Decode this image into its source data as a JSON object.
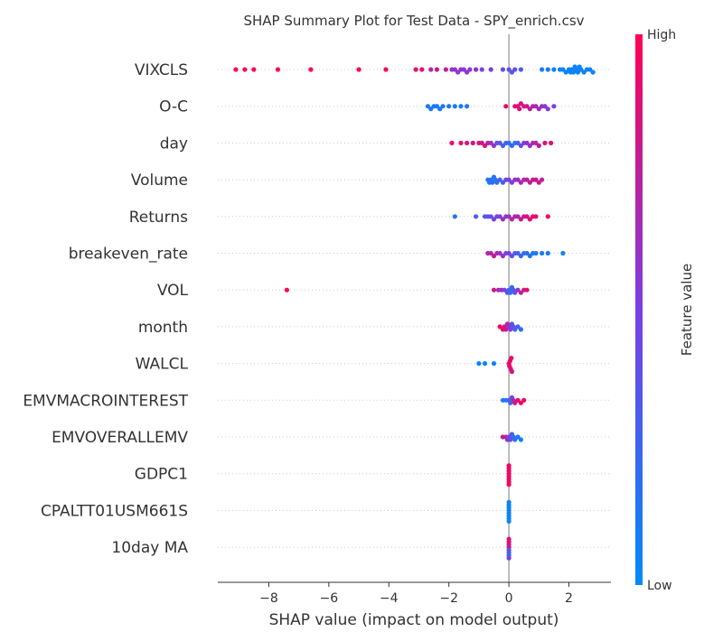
{
  "chart_data": {
    "type": "scatter",
    "title": "SHAP Summary Plot for Test Data - SPY_enrich.csv",
    "xlabel": "SHAP value (impact on model output)",
    "xlim": [
      -9.7,
      3.4
    ],
    "xticks": [
      -8,
      -6,
      -4,
      -2,
      0,
      2
    ],
    "xtick_labels": [
      "−8",
      "−6",
      "−4",
      "−2",
      "0",
      "2"
    ],
    "colorbar": {
      "label": "Feature value",
      "high_label": "High",
      "low_label": "Low",
      "colors": [
        "#008afb",
        "#7b3fe4",
        "#ff0052"
      ]
    },
    "features": [
      {
        "name": "VIXCLS",
        "points": [
          [
            -9.1,
            1
          ],
          [
            -8.8,
            1
          ],
          [
            -8.5,
            1
          ],
          [
            -7.7,
            1
          ],
          [
            -6.6,
            1
          ],
          [
            -5,
            1
          ],
          [
            -4.1,
            1
          ],
          [
            -3.1,
            0.9
          ],
          [
            -2.9,
            0.9
          ],
          [
            -2.6,
            0.7
          ],
          [
            -2.4,
            0.8
          ],
          [
            -2.1,
            0.75
          ],
          [
            -1.9,
            0.6
          ],
          [
            -1.8,
            0.6
          ],
          [
            -1.7,
            0.55
          ],
          [
            -1.6,
            0.6
          ],
          [
            -1.5,
            0.55
          ],
          [
            -1.4,
            0.6
          ],
          [
            -1.3,
            0.55
          ],
          [
            -1.1,
            0.6
          ],
          [
            -0.9,
            0.5
          ],
          [
            -0.6,
            0.5
          ],
          [
            -0.2,
            0.4
          ],
          [
            0,
            0.4
          ],
          [
            0.1,
            0.35
          ],
          [
            0.2,
            0.4
          ],
          [
            0.4,
            0.3
          ],
          [
            1.1,
            0.1
          ],
          [
            1.3,
            0.1
          ],
          [
            1.5,
            0.05
          ],
          [
            1.7,
            0.05
          ],
          [
            1.8,
            0.05
          ],
          [
            1.9,
            0.05
          ],
          [
            2,
            0.05
          ],
          [
            2.05,
            0.05
          ],
          [
            2.1,
            0.05
          ],
          [
            2.15,
            0.05
          ],
          [
            2.2,
            0.05
          ],
          [
            2.25,
            0.05
          ],
          [
            2.3,
            0.05
          ],
          [
            2.35,
            0.05
          ],
          [
            2.4,
            0.05
          ],
          [
            2.5,
            0.05
          ],
          [
            2.6,
            0.05
          ],
          [
            2.7,
            0.05
          ],
          [
            2.8,
            0.05
          ]
        ]
      },
      {
        "name": "O-C",
        "points": [
          [
            -2.7,
            0.1
          ],
          [
            -2.6,
            0.1
          ],
          [
            -2.5,
            0.1
          ],
          [
            -2.4,
            0.1
          ],
          [
            -2.3,
            0.1
          ],
          [
            -2.2,
            0.1
          ],
          [
            -2,
            0.1
          ],
          [
            -1.8,
            0.1
          ],
          [
            -1.6,
            0.1
          ],
          [
            -1.4,
            0.1
          ],
          [
            -0.1,
            0.9
          ],
          [
            0.2,
            0.9
          ],
          [
            0.3,
            0.9
          ],
          [
            0.35,
            0.85
          ],
          [
            0.4,
            0.85
          ],
          [
            0.5,
            0.8
          ],
          [
            0.6,
            0.8
          ],
          [
            0.7,
            0.75
          ],
          [
            0.8,
            0.7
          ],
          [
            0.9,
            0.7
          ],
          [
            1,
            0.65
          ],
          [
            1.1,
            0.6
          ],
          [
            1.2,
            0.6
          ],
          [
            1.3,
            0.55
          ],
          [
            1.5,
            0.5
          ]
        ]
      },
      {
        "name": "day",
        "points": [
          [
            -1.9,
            0.9
          ],
          [
            -1.6,
            0.9
          ],
          [
            -1.4,
            0.85
          ],
          [
            -1.2,
            0.85
          ],
          [
            -1,
            0.85
          ],
          [
            -0.9,
            0.8
          ],
          [
            -0.8,
            0.8
          ],
          [
            -0.7,
            0.8
          ],
          [
            -0.6,
            0.6
          ],
          [
            -0.5,
            0.6
          ],
          [
            -0.4,
            0.4
          ],
          [
            -0.3,
            0.4
          ],
          [
            -0.2,
            0.3
          ],
          [
            -0.1,
            0.2
          ],
          [
            0,
            0.2
          ],
          [
            0.1,
            0.2
          ],
          [
            0.2,
            0.15
          ],
          [
            0.3,
            0.3
          ],
          [
            0.4,
            0.4
          ],
          [
            0.5,
            0.5
          ],
          [
            0.6,
            0.6
          ],
          [
            0.7,
            0.6
          ],
          [
            0.8,
            0.7
          ],
          [
            0.9,
            0.7
          ],
          [
            1,
            0.8
          ],
          [
            1.2,
            0.85
          ],
          [
            1.4,
            0.9
          ]
        ]
      },
      {
        "name": "Volume",
        "points": [
          [
            -0.7,
            0.1
          ],
          [
            -0.65,
            0.1
          ],
          [
            -0.6,
            0.2
          ],
          [
            -0.55,
            0.2
          ],
          [
            -0.5,
            0.15
          ],
          [
            -0.45,
            0.1
          ],
          [
            -0.4,
            0.2
          ],
          [
            -0.3,
            0.3
          ],
          [
            -0.2,
            0.3
          ],
          [
            -0.1,
            0.4
          ],
          [
            0,
            0.5
          ],
          [
            0.1,
            0.5
          ],
          [
            0.2,
            0.6
          ],
          [
            0.3,
            0.6
          ],
          [
            0.4,
            0.7
          ],
          [
            0.5,
            0.7
          ],
          [
            0.6,
            0.75
          ],
          [
            0.7,
            0.75
          ],
          [
            0.8,
            0.8
          ],
          [
            0.9,
            0.8
          ],
          [
            1,
            0.8
          ],
          [
            1.1,
            0.75
          ]
        ]
      },
      {
        "name": "Returns",
        "points": [
          [
            -1.8,
            0.1
          ],
          [
            -1.1,
            0.3
          ],
          [
            -0.8,
            0.3
          ],
          [
            -0.7,
            0.4
          ],
          [
            -0.6,
            0.4
          ],
          [
            -0.5,
            0.5
          ],
          [
            -0.4,
            0.5
          ],
          [
            -0.3,
            0.5
          ],
          [
            -0.2,
            0.6
          ],
          [
            -0.1,
            0.6
          ],
          [
            0,
            0.6
          ],
          [
            0.1,
            0.7
          ],
          [
            0.2,
            0.7
          ],
          [
            0.3,
            0.7
          ],
          [
            0.4,
            0.8
          ],
          [
            0.5,
            0.8
          ],
          [
            0.6,
            0.85
          ],
          [
            0.7,
            0.9
          ],
          [
            0.8,
            0.9
          ],
          [
            0.9,
            0.9
          ],
          [
            1.3,
            0.95
          ]
        ]
      },
      {
        "name": "breakeven_rate",
        "points": [
          [
            -0.7,
            0.7
          ],
          [
            -0.6,
            0.7
          ],
          [
            -0.5,
            0.8
          ],
          [
            -0.4,
            0.7
          ],
          [
            -0.3,
            0.6
          ],
          [
            -0.2,
            0.6
          ],
          [
            -0.1,
            0.5
          ],
          [
            0,
            0.5
          ],
          [
            0.1,
            0.4
          ],
          [
            0.2,
            0.3
          ],
          [
            0.3,
            0.3
          ],
          [
            0.4,
            0.25
          ],
          [
            0.5,
            0.2
          ],
          [
            0.6,
            0.2
          ],
          [
            0.7,
            0.15
          ],
          [
            0.8,
            0.15
          ],
          [
            0.9,
            0.1
          ],
          [
            1.1,
            0.1
          ],
          [
            1.3,
            0.1
          ],
          [
            1.8,
            0.05
          ]
        ]
      },
      {
        "name": "VOL",
        "points": [
          [
            -7.4,
            1
          ],
          [
            -0.5,
            0.8
          ],
          [
            -0.35,
            0.7
          ],
          [
            -0.25,
            0.6
          ],
          [
            -0.15,
            0.5
          ],
          [
            -0.05,
            0.4
          ],
          [
            0,
            0.3
          ],
          [
            0.05,
            0.2
          ],
          [
            0.1,
            0.2
          ],
          [
            0.15,
            0.3
          ],
          [
            0.2,
            0.4
          ],
          [
            0.3,
            0.6
          ],
          [
            0.4,
            0.7
          ],
          [
            0.5,
            0.8
          ],
          [
            0.6,
            0.9
          ]
        ]
      },
      {
        "name": "month",
        "points": [
          [
            -0.3,
            0.95
          ],
          [
            -0.2,
            0.9
          ],
          [
            -0.15,
            0.85
          ],
          [
            -0.1,
            0.8
          ],
          [
            -0.05,
            0.7
          ],
          [
            0,
            0.6
          ],
          [
            0.05,
            0.5
          ],
          [
            0.1,
            0.4
          ],
          [
            0.15,
            0.4
          ],
          [
            0.2,
            0.3
          ],
          [
            0.3,
            0.25
          ],
          [
            0.4,
            0.2
          ]
        ]
      },
      {
        "name": "WALCL",
        "points": [
          [
            -1,
            0.05
          ],
          [
            -0.8,
            0.05
          ],
          [
            -0.5,
            0.05
          ],
          [
            0,
            0.9
          ],
          [
            0.02,
            0.95
          ],
          [
            0.04,
            0.9
          ],
          [
            0.06,
            0.85
          ],
          [
            0.08,
            0.9
          ],
          [
            0.1,
            0.85
          ]
        ]
      },
      {
        "name": "EMVMACROINTEREST",
        "points": [
          [
            -0.2,
            0.1
          ],
          [
            -0.1,
            0.15
          ],
          [
            0,
            0.2
          ],
          [
            0.05,
            0.3
          ],
          [
            0.1,
            0.5
          ],
          [
            0.15,
            0.7
          ],
          [
            0.2,
            0.8
          ],
          [
            0.3,
            0.9
          ],
          [
            0.4,
            0.95
          ],
          [
            0.5,
            0.95
          ]
        ]
      },
      {
        "name": "EMVOVERALLEMV",
        "points": [
          [
            -0.2,
            0.8
          ],
          [
            -0.1,
            0.7
          ],
          [
            -0.05,
            0.6
          ],
          [
            0,
            0.5
          ],
          [
            0.05,
            0.4
          ],
          [
            0.1,
            0.3
          ],
          [
            0.15,
            0.2
          ],
          [
            0.2,
            0.2
          ],
          [
            0.3,
            0.1
          ],
          [
            0.4,
            0.05
          ]
        ]
      },
      {
        "name": "GDPC1",
        "points": [
          [
            0,
            0.95
          ],
          [
            0,
            0.95
          ],
          [
            0,
            0.95
          ],
          [
            0,
            0.95
          ],
          [
            0,
            0.95
          ],
          [
            0,
            0.95
          ],
          [
            0,
            0.95
          ],
          [
            0,
            0.95
          ]
        ]
      },
      {
        "name": "CPALTT01USM661S",
        "points": [
          [
            0,
            0.05
          ],
          [
            0,
            0.05
          ],
          [
            0,
            0.05
          ],
          [
            0,
            0.05
          ],
          [
            0,
            0.05
          ],
          [
            0,
            0.05
          ],
          [
            0,
            0.05
          ],
          [
            0,
            0.05
          ]
        ]
      },
      {
        "name": "10day MA",
        "points": [
          [
            0,
            0.9
          ],
          [
            0,
            0.3
          ],
          [
            0,
            0.8
          ],
          [
            0,
            0.4
          ],
          [
            0,
            0.9
          ],
          [
            0,
            0.2
          ],
          [
            0,
            0.85
          ],
          [
            0,
            0.5
          ]
        ]
      }
    ]
  }
}
